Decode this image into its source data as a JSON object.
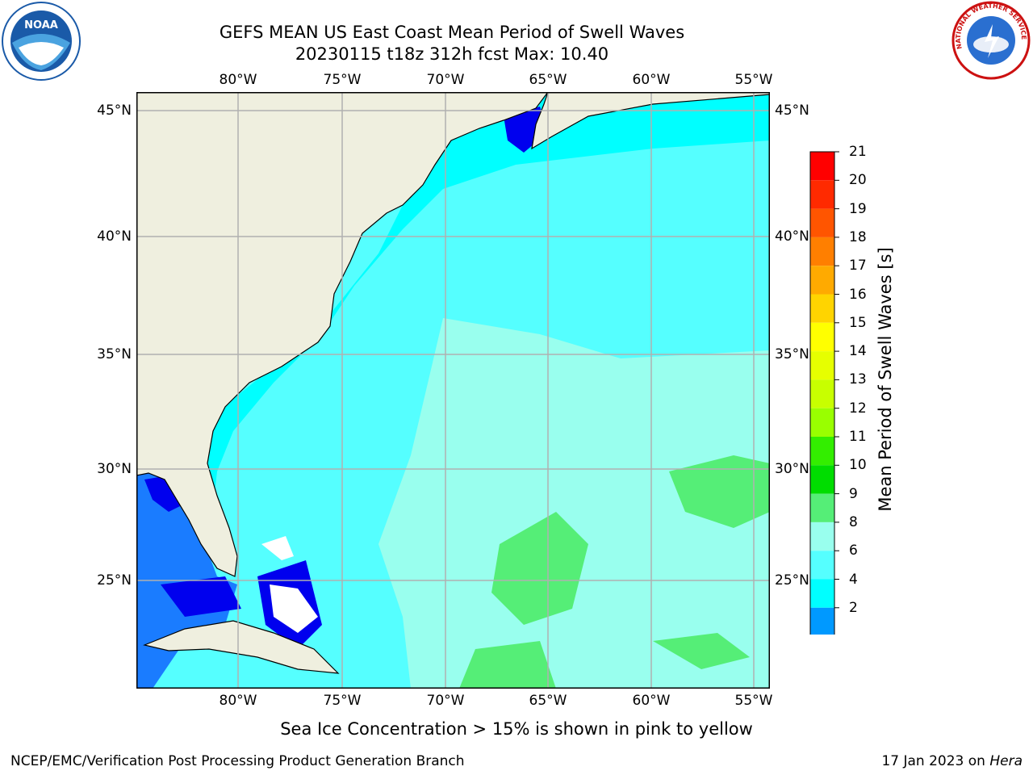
{
  "title": {
    "line1": "GEFS MEAN US East Coast Mean Period of Swell Waves",
    "line2": "20230115 t18z 312h fcst   Max: 10.40"
  },
  "axes": {
    "lon_labels": [
      "80°W",
      "75°W",
      "70°W",
      "65°W",
      "60°W",
      "55°W"
    ],
    "lat_labels": [
      "45°N",
      "40°N",
      "35°N",
      "30°N",
      "25°N"
    ]
  },
  "colorbar": {
    "title": "Mean Period of Swell Waves [s]",
    "ticks": [
      "21",
      "20",
      "19",
      "18",
      "17",
      "16",
      "15",
      "14",
      "13",
      "12",
      "11",
      "10",
      "9",
      "8",
      "6",
      "4",
      "2"
    ],
    "colors": [
      "#ff0000",
      "#ff2a00",
      "#ff5500",
      "#ff7f00",
      "#ffaa00",
      "#ffd400",
      "#ffff00",
      "#e6ff00",
      "#c8ff00",
      "#99ff00",
      "#33ee00",
      "#00dd00",
      "#55ee77",
      "#99ffee",
      "#55ffff",
      "#00ffff",
      "#0099ff"
    ],
    "under_color": "#0000ee"
  },
  "map_colors": {
    "land": "#efefdf",
    "land_white": "#ffffff",
    "period_4_6": "#00ffff",
    "period_6_8": "#55ffff",
    "period_8_9": "#99ffee",
    "period_9_10": "#55ee77",
    "period_2_4": "#1a7cff",
    "period_below_2": "#0000ee",
    "grid": "#b0b0b0"
  },
  "footer": {
    "note": "Sea Ice Concentration > 15% is shown in pink to yellow",
    "left": "NCEP/EMC/Verification Post Processing Product Generation Branch",
    "right_date": "17 Jan 2023 on",
    "right_machine": "Hera"
  },
  "logos": {
    "noaa_text": "NOAA",
    "nws_text": "NATIONAL WEATHER SERVICE"
  }
}
